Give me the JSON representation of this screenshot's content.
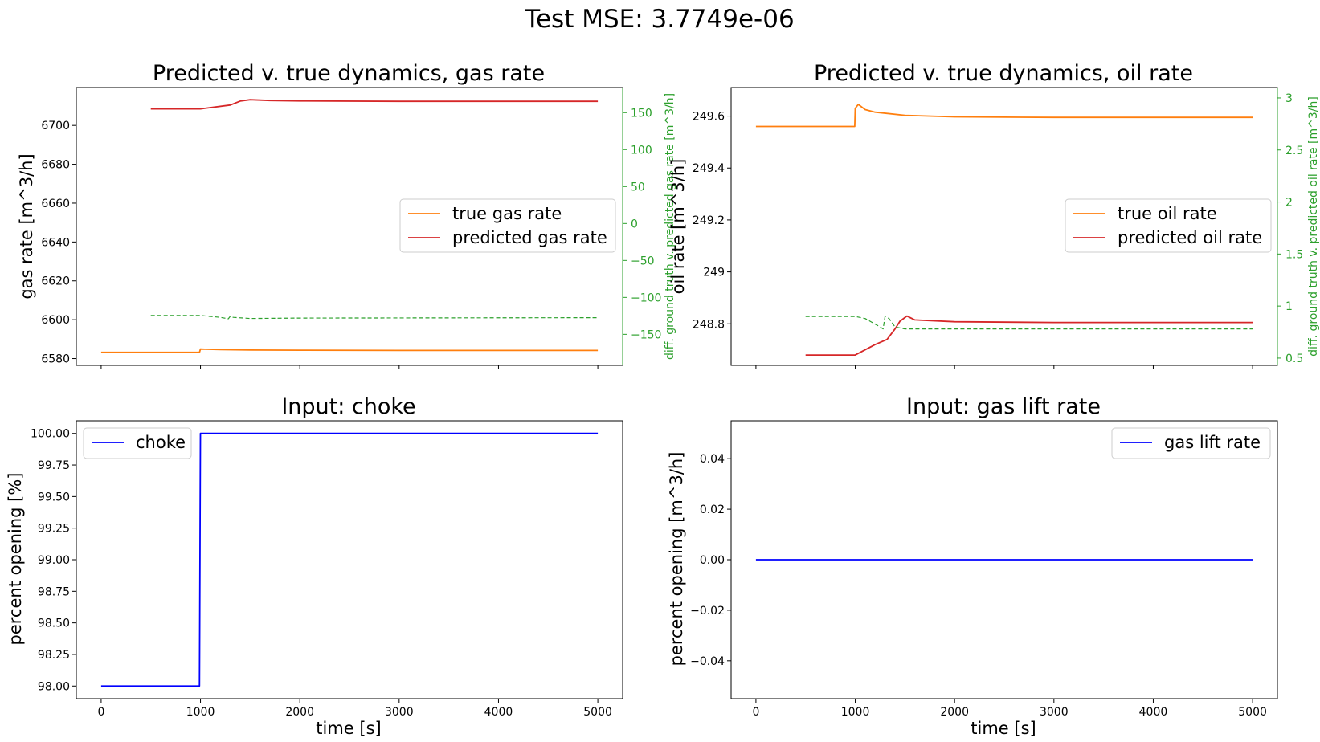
{
  "suptitle": "Test MSE: 3.7749e-06",
  "colors": {
    "true": "#ff7f0e",
    "predicted": "#d62728",
    "diff": "#2ca02c",
    "input": "#0000ff"
  },
  "chart_data": [
    {
      "id": "gas",
      "type": "line",
      "title": "Predicted v. true dynamics, gas rate",
      "xlabel": "",
      "ylabel": "gas rate [m^3/h]",
      "y2label": "diff. ground truth v. predicted gas rate [m^3/h]",
      "xlim": [
        -250,
        5250
      ],
      "ylim": [
        6576.5,
        6719.5
      ],
      "y2lim": [
        -192,
        184
      ],
      "xticks": [
        0,
        1000,
        2000,
        3000,
        4000,
        5000
      ],
      "show_xticklabels": false,
      "yticks": [
        6580,
        6600,
        6620,
        6640,
        6660,
        6680,
        6700
      ],
      "y2ticks": [
        -150,
        -100,
        -50,
        0,
        50,
        100,
        150
      ],
      "legend": {
        "position": "center-right",
        "entries": [
          "true gas rate",
          "predicted gas rate"
        ]
      },
      "series": [
        {
          "name": "true gas rate",
          "color": "#ff7f0e",
          "axis": "left",
          "style": "solid",
          "x": [
            0,
            990,
            1000,
            1050,
            1200,
            1500,
            2000,
            3000,
            5000
          ],
          "y": [
            6583.2,
            6583.2,
            6584.9,
            6584.8,
            6584.6,
            6584.4,
            6584.3,
            6584.2,
            6584.2
          ]
        },
        {
          "name": "predicted gas rate",
          "color": "#d62728",
          "axis": "left",
          "style": "solid",
          "x": [
            500,
            1000,
            1300,
            1400,
            1500,
            1700,
            2000,
            3000,
            5000
          ],
          "y": [
            6708.5,
            6708.5,
            6710.5,
            6712.5,
            6713.2,
            6712.8,
            6712.6,
            6712.4,
            6712.4
          ]
        },
        {
          "name": "",
          "color": "#2ca02c",
          "axis": "right",
          "style": "dashed",
          "x": [
            500,
            1000,
            1200,
            1280,
            1300,
            1330,
            1500,
            2000,
            5000
          ],
          "y": [
            -124.5,
            -124.5,
            -127,
            -129,
            -125.5,
            -127,
            -128.5,
            -128,
            -127.5
          ]
        }
      ]
    },
    {
      "id": "oil",
      "type": "line",
      "title": "Predicted v. true dynamics, oil rate",
      "xlabel": "",
      "ylabel": "oil rate [m^3/h]",
      "y2label": "diff. ground truth v. predicted oil rate [m^3/h]",
      "xlim": [
        -250,
        5250
      ],
      "ylim": [
        248.64,
        249.71
      ],
      "y2lim": [
        0.43,
        3.1
      ],
      "xticks": [
        0,
        1000,
        2000,
        3000,
        4000,
        5000
      ],
      "show_xticklabels": false,
      "yticks": [
        248.8,
        249.0,
        249.2,
        249.4,
        249.6
      ],
      "y2ticks": [
        0.5,
        1.0,
        1.5,
        2.0,
        2.5,
        3.0
      ],
      "legend": {
        "position": "center-right",
        "entries": [
          "true oil rate",
          "predicted oil rate"
        ]
      },
      "series": [
        {
          "name": "true oil rate",
          "color": "#ff7f0e",
          "axis": "left",
          "style": "solid",
          "x": [
            0,
            995,
            1000,
            1030,
            1100,
            1200,
            1500,
            2000,
            3000,
            5000
          ],
          "y": [
            249.56,
            249.56,
            249.63,
            249.645,
            249.625,
            249.615,
            249.603,
            249.597,
            249.595,
            249.595
          ]
        },
        {
          "name": "predicted oil rate",
          "color": "#d62728",
          "axis": "left",
          "style": "solid",
          "x": [
            500,
            1000,
            1100,
            1200,
            1320,
            1400,
            1450,
            1520,
            1600,
            2000,
            3000,
            5000
          ],
          "y": [
            248.68,
            248.68,
            248.7,
            248.72,
            248.74,
            248.78,
            248.81,
            248.83,
            248.815,
            248.808,
            248.805,
            248.805
          ]
        },
        {
          "name": "",
          "color": "#2ca02c",
          "axis": "right",
          "style": "dashed",
          "x": [
            500,
            1000,
            1100,
            1250,
            1280,
            1300,
            1340,
            1400,
            1500,
            1600,
            2000,
            5000
          ],
          "y": [
            0.9,
            0.9,
            0.88,
            0.8,
            0.78,
            0.9,
            0.88,
            0.8,
            0.78,
            0.78,
            0.78,
            0.78
          ]
        }
      ]
    },
    {
      "id": "choke",
      "type": "line",
      "title": "Input: choke",
      "xlabel": "time [s]",
      "ylabel": "percent opening [%]",
      "xlim": [
        -250,
        5250
      ],
      "ylim": [
        97.9,
        100.1
      ],
      "xticks": [
        0,
        1000,
        2000,
        3000,
        4000,
        5000
      ],
      "show_xticklabels": true,
      "yticks": [
        98.0,
        98.25,
        98.5,
        98.75,
        99.0,
        99.25,
        99.5,
        99.75,
        100.0
      ],
      "ytick_labels": [
        "98.00",
        "98.25",
        "98.50",
        "98.75",
        "99.00",
        "99.25",
        "99.50",
        "99.75",
        "100.00"
      ],
      "legend": {
        "position": "upper-left",
        "entries": [
          "choke"
        ]
      },
      "series": [
        {
          "name": "choke",
          "color": "#0000ff",
          "axis": "left",
          "style": "solid",
          "x": [
            0,
            990,
            1000,
            5000
          ],
          "y": [
            98.0,
            98.0,
            100.0,
            100.0
          ]
        }
      ]
    },
    {
      "id": "gaslift",
      "type": "line",
      "title": "Input: gas lift rate",
      "xlabel": "time [s]",
      "ylabel": "percent opening [m^3/h]",
      "xlim": [
        -250,
        5250
      ],
      "ylim": [
        -0.055,
        0.055
      ],
      "xticks": [
        0,
        1000,
        2000,
        3000,
        4000,
        5000
      ],
      "show_xticklabels": true,
      "yticks": [
        -0.04,
        -0.02,
        0.0,
        0.02,
        0.04
      ],
      "ytick_labels": [
        "−0.04",
        "−0.02",
        "0.00",
        "0.02",
        "0.04"
      ],
      "legend": {
        "position": "upper-right",
        "entries": [
          "gas lift rate"
        ]
      },
      "series": [
        {
          "name": "gas lift rate",
          "color": "#0000ff",
          "axis": "left",
          "style": "solid",
          "x": [
            0,
            5000
          ],
          "y": [
            0.0,
            0.0
          ]
        }
      ]
    }
  ]
}
